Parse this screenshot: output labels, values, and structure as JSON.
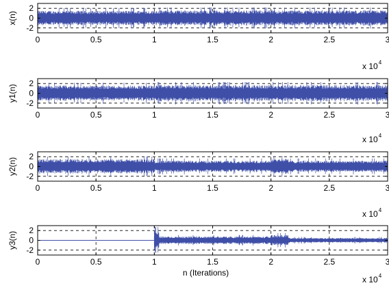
{
  "chart_data": [
    {
      "type": "line",
      "ylabel": "x(n)",
      "xlabel": "",
      "xlim": [
        0,
        30000
      ],
      "ylim": [
        -3,
        3
      ],
      "x_ticks": [
        0,
        5000,
        10000,
        15000,
        20000,
        25000,
        30000
      ],
      "x_tick_labels": [
        "0",
        "0.5",
        "1",
        "1.5",
        "2",
        "2.5",
        "3"
      ],
      "y_ticks": [
        -2,
        0,
        2
      ],
      "y_tick_labels": [
        "-2",
        "0",
        "2"
      ],
      "x_multiplier": "x 10",
      "x_exponent": "4",
      "grid": true,
      "series": [
        {
          "color": "#3f4fa8",
          "segments": [
            {
              "x0": 0,
              "x1": 10000,
              "amp": 1.5
            },
            {
              "x0": 10000,
              "x1": 30000,
              "amp": 1.6
            }
          ]
        }
      ]
    },
    {
      "type": "line",
      "ylabel": "y1(n)",
      "xlabel": "",
      "xlim": [
        0,
        30000
      ],
      "ylim": [
        -3,
        3
      ],
      "x_ticks": [
        0,
        5000,
        10000,
        15000,
        20000,
        25000,
        30000
      ],
      "x_tick_labels": [
        "0",
        "0.5",
        "1",
        "1.5",
        "2",
        "2.5",
        "3"
      ],
      "y_ticks": [
        -2,
        0,
        2
      ],
      "y_tick_labels": [
        "-2",
        "0",
        "2"
      ],
      "x_multiplier": "x 10",
      "x_exponent": "4",
      "grid": true,
      "series": [
        {
          "color": "#3f4fa8",
          "segments": [
            {
              "x0": 0,
              "x1": 10000,
              "amp": 1.6
            },
            {
              "x0": 10000,
              "x1": 30000,
              "amp": 1.7
            }
          ]
        }
      ]
    },
    {
      "type": "line",
      "ylabel": "y2(n)",
      "xlabel": "",
      "xlim": [
        0,
        30000
      ],
      "ylim": [
        -3,
        3
      ],
      "x_ticks": [
        0,
        5000,
        10000,
        15000,
        20000,
        25000,
        30000
      ],
      "x_tick_labels": [
        "0",
        "0.5",
        "1",
        "1.5",
        "2",
        "2.5",
        "3"
      ],
      "y_ticks": [
        -2,
        0,
        2
      ],
      "y_tick_labels": [
        "-2",
        "0",
        "2"
      ],
      "x_multiplier": "x 10",
      "x_exponent": "4",
      "grid": true,
      "series": [
        {
          "color": "#3f4fa8",
          "segments": [
            {
              "x0": 0,
              "x1": 10000,
              "amp": 1.5
            },
            {
              "x0": 10000,
              "x1": 20000,
              "amp": 1.2
            },
            {
              "x0": 20000,
              "x1": 21500,
              "amp": 1.6
            },
            {
              "x0": 21500,
              "x1": 30000,
              "amp": 1.2
            }
          ]
        }
      ]
    },
    {
      "type": "line",
      "ylabel": "y3(n)",
      "xlabel": "n (Iterations)",
      "xlim": [
        0,
        30000
      ],
      "ylim": [
        -3,
        3
      ],
      "x_ticks": [
        0,
        5000,
        10000,
        15000,
        20000,
        25000,
        30000
      ],
      "x_tick_labels": [
        "0",
        "0.5",
        "1",
        "1.5",
        "2",
        "2.5",
        "3"
      ],
      "y_ticks": [
        -2,
        0,
        2
      ],
      "y_tick_labels": [
        "-2",
        "0",
        "2"
      ],
      "x_multiplier": "x 10",
      "x_exponent": "4",
      "grid": true,
      "series": [
        {
          "color": "#3f4fa8",
          "segments": [
            {
              "x0": 0,
              "x1": 10000,
              "amp": 0.05
            },
            {
              "x0": 10000,
              "x1": 10400,
              "amp": 2.0
            },
            {
              "x0": 10400,
              "x1": 20000,
              "amp": 0.8
            },
            {
              "x0": 20000,
              "x1": 21500,
              "amp": 1.1
            },
            {
              "x0": 21500,
              "x1": 30000,
              "amp": 0.5
            }
          ]
        }
      ]
    }
  ]
}
